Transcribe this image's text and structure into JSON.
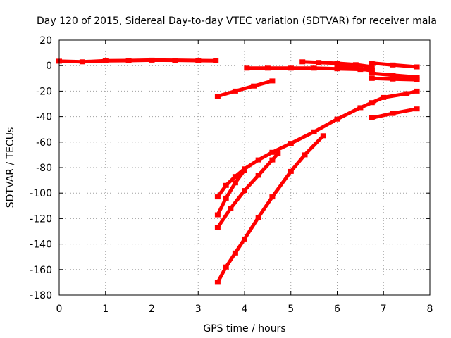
{
  "chart_data": {
    "type": "scatter",
    "title": "Day 120 of 2015, Sidereal Day-to-day VTEC variation (SDTVAR) for receiver mala",
    "xlabel": "GPS time / hours",
    "ylabel": "SDTVAR / TECUs",
    "xlim": [
      0,
      8
    ],
    "ylim": [
      -180,
      20
    ],
    "xticks": [
      0,
      1,
      2,
      3,
      4,
      5,
      6,
      7,
      8
    ],
    "yticks": [
      20,
      0,
      -20,
      -40,
      -60,
      -80,
      -100,
      -120,
      -140,
      -160,
      -180
    ],
    "grid": true,
    "color": "#ff0000",
    "series": [
      {
        "x": [
          0.0,
          0.5,
          1.0,
          1.5,
          2.0,
          2.5,
          3.0,
          3.38
        ],
        "y": [
          3.5,
          3.0,
          3.8,
          4.0,
          4.3,
          4.2,
          4.0,
          3.8
        ]
      },
      {
        "x": [
          3.42,
          3.8,
          4.2,
          4.6
        ],
        "y": [
          -24,
          -20,
          -16,
          -12
        ]
      },
      {
        "x": [
          4.05,
          4.5,
          5.0,
          5.5,
          6.0,
          6.5,
          6.75
        ],
        "y": [
          -2,
          -2,
          -2,
          -2,
          -2.5,
          -3,
          -3.5
        ]
      },
      {
        "x": [
          5.25,
          5.6,
          6.0,
          6.4,
          6.75
        ],
        "y": [
          3,
          2.5,
          1.8,
          0.8,
          -1
        ]
      },
      {
        "x": [
          6.0,
          6.4,
          6.75
        ],
        "y": [
          0,
          -2,
          -4
        ]
      },
      {
        "x": [
          6.75,
          7.2,
          7.72
        ],
        "y": [
          2,
          0.5,
          -1
        ]
      },
      {
        "x": [
          6.75,
          7.2,
          7.72
        ],
        "y": [
          -6,
          -7.5,
          -9
        ]
      },
      {
        "x": [
          6.75,
          7.2,
          7.72
        ],
        "y": [
          -10,
          -10.5,
          -11
        ]
      },
      {
        "x": [
          3.42,
          3.6,
          3.8,
          4.0,
          4.3,
          4.6,
          5.0,
          5.5,
          6.0,
          6.5,
          6.75,
          7.0,
          7.5,
          7.72
        ],
        "y": [
          -103,
          -94,
          -87,
          -81,
          -74,
          -68,
          -61,
          -52,
          -42,
          -33,
          -29,
          -25,
          -22,
          -20
        ]
      },
      {
        "x": [
          6.75,
          7.2,
          7.72
        ],
        "y": [
          -41,
          -37.5,
          -34
        ]
      },
      {
        "x": [
          3.42,
          3.6,
          3.8,
          4.0
        ],
        "y": [
          -117,
          -104,
          -92,
          -82
        ]
      },
      {
        "x": [
          3.42,
          3.7,
          4.0,
          4.3,
          4.6,
          4.72
        ],
        "y": [
          -127,
          -112,
          -98,
          -86,
          -74,
          -69
        ]
      },
      {
        "x": [
          3.42,
          3.6,
          3.8,
          4.0,
          4.3,
          4.6,
          5.0,
          5.3,
          5.7
        ],
        "y": [
          -170,
          -158,
          -147,
          -136,
          -119,
          -103,
          -83,
          -70,
          -55
        ]
      }
    ]
  }
}
